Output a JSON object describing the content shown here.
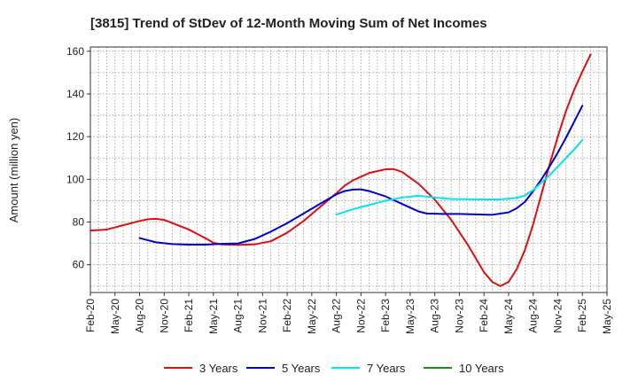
{
  "chart_data": {
    "type": "line",
    "title": "[3815]  Trend of StDev of 12-Month Moving Sum of Net Incomes",
    "ylabel": "Amount (million yen)",
    "xlabel": "",
    "ylim": [
      47,
      162
    ],
    "yticks": [
      60,
      80,
      100,
      120,
      140,
      160
    ],
    "xlim": [
      "2020-02",
      "2025-05"
    ],
    "xticks": [
      "Feb-20",
      "May-20",
      "Aug-20",
      "Nov-20",
      "Feb-21",
      "May-21",
      "Aug-21",
      "Nov-21",
      "Feb-22",
      "May-22",
      "Aug-22",
      "Nov-22",
      "Feb-23",
      "May-23",
      "Aug-23",
      "Nov-23",
      "Feb-24",
      "May-24",
      "Aug-24",
      "Nov-24",
      "Feb-25",
      "May-25"
    ],
    "grid": true,
    "legend_position": "bottom",
    "series": [
      {
        "name": "3 Years",
        "color": "#dd1111",
        "points": [
          [
            "2020-02",
            76
          ],
          [
            "2020-04",
            76.5
          ],
          [
            "2020-06",
            78.5
          ],
          [
            "2020-08",
            80.5
          ],
          [
            "2020-09",
            81.3
          ],
          [
            "2020-10",
            81.5
          ],
          [
            "2020-11",
            81
          ],
          [
            "2020-12",
            79.5
          ],
          [
            "2021-02",
            76.5
          ],
          [
            "2021-04",
            72.5
          ],
          [
            "2021-05",
            70.3
          ],
          [
            "2021-06",
            69.5
          ],
          [
            "2021-08",
            69.3
          ],
          [
            "2021-10",
            69.5
          ],
          [
            "2021-12",
            71
          ],
          [
            "2022-02",
            75
          ],
          [
            "2022-04",
            80.5
          ],
          [
            "2022-06",
            87
          ],
          [
            "2022-08",
            93.5
          ],
          [
            "2022-09",
            97
          ],
          [
            "2022-10",
            99.5
          ],
          [
            "2022-12",
            103
          ],
          [
            "2023-02",
            104.7
          ],
          [
            "2023-03",
            104.8
          ],
          [
            "2023-04",
            103.5
          ],
          [
            "2023-06",
            98
          ],
          [
            "2023-08",
            90.5
          ],
          [
            "2023-10",
            81
          ],
          [
            "2023-12",
            69.5
          ],
          [
            "2024-02",
            56.5
          ],
          [
            "2024-03",
            52
          ],
          [
            "2024-04",
            50
          ],
          [
            "2024-05",
            52
          ],
          [
            "2024-06",
            58
          ],
          [
            "2024-07",
            67
          ],
          [
            "2024-08",
            79
          ],
          [
            "2024-09",
            93
          ],
          [
            "2024-10",
            107
          ],
          [
            "2024-11",
            120
          ],
          [
            "2024-12",
            132
          ],
          [
            "2025-01",
            142
          ],
          [
            "2025-02",
            150.5
          ],
          [
            "2025-03",
            158.5
          ]
        ]
      },
      {
        "name": "5 Years",
        "color": "#0000cc",
        "points": [
          [
            "2020-08",
            72.5
          ],
          [
            "2020-10",
            70.5
          ],
          [
            "2020-12",
            69.7
          ],
          [
            "2021-02",
            69.4
          ],
          [
            "2021-04",
            69.4
          ],
          [
            "2021-06",
            69.8
          ],
          [
            "2021-08",
            70
          ],
          [
            "2021-10",
            72
          ],
          [
            "2021-12",
            75.5
          ],
          [
            "2022-02",
            79.5
          ],
          [
            "2022-04",
            84
          ],
          [
            "2022-06",
            88.5
          ],
          [
            "2022-08",
            93
          ],
          [
            "2022-09",
            94.5
          ],
          [
            "2022-10",
            95.2
          ],
          [
            "2022-11",
            95.3
          ],
          [
            "2022-12",
            94.5
          ],
          [
            "2023-02",
            92
          ],
          [
            "2023-04",
            88.5
          ],
          [
            "2023-06",
            85
          ],
          [
            "2023-07",
            84
          ],
          [
            "2023-09",
            83.8
          ],
          [
            "2023-11",
            83.8
          ],
          [
            "2024-01",
            83.6
          ],
          [
            "2024-03",
            83.4
          ],
          [
            "2024-05",
            84.5
          ],
          [
            "2024-06",
            86.5
          ],
          [
            "2024-07",
            89.5
          ],
          [
            "2024-08",
            94.5
          ],
          [
            "2024-09",
            100
          ],
          [
            "2024-10",
            106
          ],
          [
            "2024-11",
            112.5
          ],
          [
            "2024-12",
            119.5
          ],
          [
            "2025-01",
            127
          ],
          [
            "2025-02",
            134.5
          ]
        ]
      },
      {
        "name": "7 Years",
        "color": "#00e5ee",
        "points": [
          [
            "2022-08",
            83.5
          ],
          [
            "2022-10",
            86
          ],
          [
            "2022-12",
            88
          ],
          [
            "2023-02",
            90
          ],
          [
            "2023-04",
            91.5
          ],
          [
            "2023-06",
            92.3
          ],
          [
            "2023-08",
            91.5
          ],
          [
            "2023-10",
            90.8
          ],
          [
            "2023-12",
            90.7
          ],
          [
            "2024-02",
            90.6
          ],
          [
            "2024-04",
            90.6
          ],
          [
            "2024-06",
            91.3
          ],
          [
            "2024-07",
            92.5
          ],
          [
            "2024-08",
            95
          ],
          [
            "2024-09",
            98.5
          ],
          [
            "2024-10",
            102
          ],
          [
            "2024-11",
            106
          ],
          [
            "2024-12",
            110
          ],
          [
            "2025-01",
            114
          ],
          [
            "2025-02",
            118.5
          ]
        ]
      },
      {
        "name": "10 Years",
        "color": "#228822",
        "points": []
      }
    ]
  }
}
